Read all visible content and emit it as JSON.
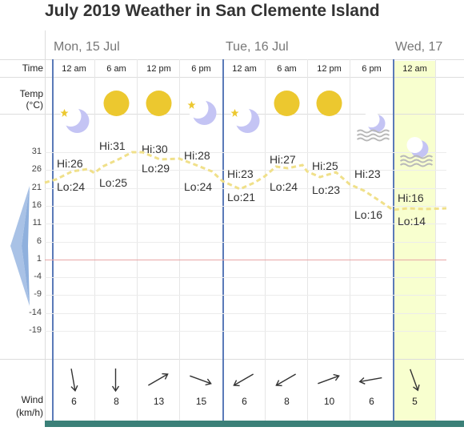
{
  "page_title": "July 2019 Weather in San Clemente Island",
  "labels": {
    "time": "Time",
    "temp_line1": "Temp",
    "temp_line2": "(°C)",
    "wind_line1": "Wind",
    "wind_line2": "(km/h)"
  },
  "days": [
    {
      "label": "Mon, 15 Jul"
    },
    {
      "label": "Tue, 16 Jul"
    },
    {
      "label": "Wed, 17"
    }
  ],
  "times": [
    "12 am",
    "6 am",
    "12 pm",
    "6 pm",
    "12 am",
    "6 am",
    "12 pm",
    "6 pm",
    "12 am"
  ],
  "icons": [
    "moon-star-icon",
    "sun-icon",
    "sun-icon",
    "moon-star-icon",
    "moon-star-icon",
    "sun-icon",
    "sun-icon",
    "fog-moon-icon",
    "fog-moon-icon"
  ],
  "temp_ticks": [
    "31",
    "26",
    "21",
    "16",
    "11",
    "6",
    "1",
    "-4",
    "-9",
    "-14",
    "-19"
  ],
  "hilo": [
    {
      "hi": "Hi:26",
      "lo": "Lo:24"
    },
    {
      "hi": "Hi:31",
      "lo": "Lo:25"
    },
    {
      "hi": "Hi:30",
      "lo": "Lo:29"
    },
    {
      "hi": "Hi:28",
      "lo": "Lo:24"
    },
    {
      "hi": "Hi:23",
      "lo": "Lo:21"
    },
    {
      "hi": "Hi:27",
      "lo": "Lo:24"
    },
    {
      "hi": "Hi:25",
      "lo": "Lo:23"
    },
    {
      "hi": "Hi:23",
      "lo": "Lo:16"
    },
    {
      "hi": "Hi:16",
      "lo": "Lo:14"
    }
  ],
  "wind": [
    {
      "speed": "6",
      "dir_deg": 170
    },
    {
      "speed": "8",
      "dir_deg": 180
    },
    {
      "speed": "13",
      "dir_deg": 60
    },
    {
      "speed": "15",
      "dir_deg": 110
    },
    {
      "speed": "6",
      "dir_deg": 240
    },
    {
      "speed": "8",
      "dir_deg": 240
    },
    {
      "speed": "10",
      "dir_deg": 70
    },
    {
      "speed": "6",
      "dir_deg": 260
    },
    {
      "speed": "5",
      "dir_deg": 160
    }
  ],
  "colors": {
    "day_line": "#5a7ab8",
    "sun": "#ecc82f",
    "moon": "#c4c4f4",
    "temp_line": "#f0e08a",
    "highlight": "#f8ffcf",
    "bottom_bar": "#3b8078",
    "nav_arrow": "#a9c2e6"
  }
}
